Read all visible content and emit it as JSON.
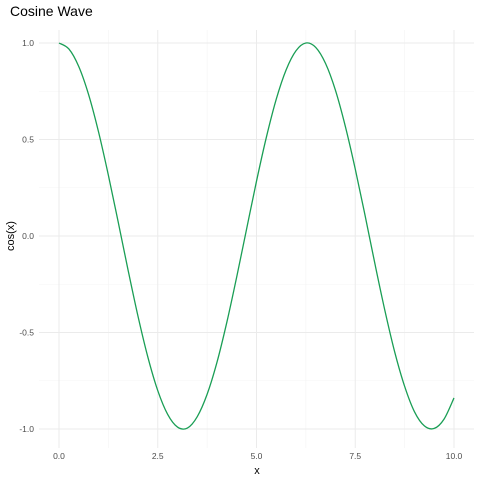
{
  "chart_data": {
    "type": "line",
    "title": "Cosine Wave",
    "xlabel": "x",
    "ylabel": "cos(x)",
    "xlim": [
      0,
      10
    ],
    "ylim": [
      -1.0,
      1.0
    ],
    "x_ticks": [
      0.0,
      2.5,
      5.0,
      7.5,
      10.0
    ],
    "x_tick_labels": [
      "0.0",
      "2.5",
      "5.0",
      "7.5",
      "10.0"
    ],
    "y_ticks": [
      1.0,
      0.5,
      0.0,
      -0.5,
      -1.0
    ],
    "y_tick_labels": [
      "1.0",
      "0.5",
      "0.0",
      "-0.5",
      "-1.0"
    ],
    "grid": true,
    "series": [
      {
        "color": "#1a9e55",
        "x": [
          0.0,
          0.25,
          0.5,
          0.75,
          1.0,
          1.25,
          1.5,
          1.75,
          2.0,
          2.25,
          2.5,
          2.75,
          3.0,
          3.25,
          3.5,
          3.75,
          4.0,
          4.25,
          4.5,
          4.75,
          5.0,
          5.25,
          5.5,
          5.75,
          6.0,
          6.25,
          6.5,
          6.75,
          7.0,
          7.25,
          7.5,
          7.75,
          8.0,
          8.25,
          8.5,
          8.75,
          9.0,
          9.25,
          9.5,
          9.75,
          10.0
        ],
        "y": [
          1.0,
          0.969,
          0.878,
          0.732,
          0.54,
          0.315,
          0.071,
          -0.178,
          -0.416,
          -0.628,
          -0.801,
          -0.924,
          -0.99,
          -0.995,
          -0.936,
          -0.82,
          -0.654,
          -0.446,
          -0.211,
          0.037,
          0.284,
          0.512,
          0.709,
          0.861,
          0.96,
          1.0,
          0.977,
          0.893,
          0.754,
          0.567,
          0.347,
          0.105,
          -0.146,
          -0.386,
          -0.602,
          -0.779,
          -0.911,
          -0.984,
          -0.997,
          -0.948,
          -0.839
        ]
      }
    ]
  }
}
